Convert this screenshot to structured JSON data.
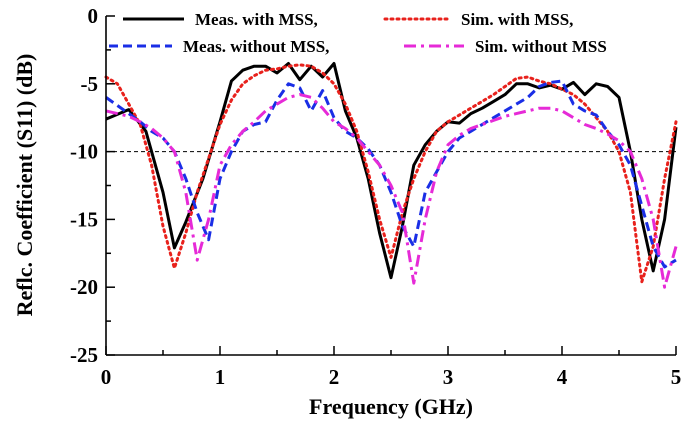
{
  "chart_data": {
    "type": "line",
    "xlabel": "Frequency (GHz)",
    "ylabel": "Reflc. Coefficient (S11) (dB)",
    "xlim": [
      0,
      5
    ],
    "ylim": [
      -25,
      0
    ],
    "x_ticks": [
      "0",
      "1",
      "2",
      "3",
      "4",
      "5"
    ],
    "y_ticks": [
      "0",
      "-5",
      "-10",
      "-15",
      "-20",
      "-25"
    ],
    "reference_line": -10,
    "grid": false,
    "legend_position": "top",
    "series": [
      {
        "name": "Meas. with MSS,",
        "color": "#000000",
        "dash": "solid",
        "x": [
          0,
          0.2,
          0.35,
          0.5,
          0.6,
          0.7,
          0.85,
          1.0,
          1.1,
          1.2,
          1.3,
          1.4,
          1.5,
          1.6,
          1.7,
          1.8,
          1.9,
          2.0,
          2.1,
          2.2,
          2.3,
          2.4,
          2.5,
          2.6,
          2.7,
          2.8,
          2.9,
          3.0,
          3.1,
          3.2,
          3.3,
          3.4,
          3.5,
          3.6,
          3.7,
          3.8,
          3.9,
          4.0,
          4.1,
          4.2,
          4.3,
          4.4,
          4.5,
          4.6,
          4.7,
          4.8,
          4.9,
          5.0
        ],
        "y": [
          -7.6,
          -6.9,
          -8.5,
          -13.0,
          -17.1,
          -15.2,
          -12.0,
          -7.8,
          -4.8,
          -4.0,
          -3.7,
          -3.7,
          -4.2,
          -3.5,
          -4.7,
          -3.7,
          -4.5,
          -3.5,
          -7.0,
          -9.0,
          -12.0,
          -16.0,
          -19.3,
          -15.5,
          -11.0,
          -9.5,
          -8.5,
          -7.8,
          -7.9,
          -7.2,
          -6.8,
          -6.3,
          -5.8,
          -5.0,
          -5.0,
          -5.3,
          -5.1,
          -5.4,
          -4.9,
          -5.8,
          -5.0,
          -5.2,
          -6.0,
          -10.0,
          -15.0,
          -18.8,
          -15.0,
          -8.2
        ]
      },
      {
        "name": "Sim. with MSS,",
        "color": "#e8211c",
        "dash": "dotted",
        "x": [
          0,
          0.1,
          0.2,
          0.3,
          0.4,
          0.5,
          0.6,
          0.7,
          0.8,
          0.9,
          1.0,
          1.1,
          1.2,
          1.3,
          1.4,
          1.5,
          1.6,
          1.7,
          1.8,
          1.9,
          2.0,
          2.1,
          2.2,
          2.3,
          2.4,
          2.5,
          2.6,
          2.7,
          2.8,
          2.9,
          3.0,
          3.1,
          3.2,
          3.3,
          3.4,
          3.5,
          3.6,
          3.7,
          3.8,
          3.9,
          4.0,
          4.1,
          4.2,
          4.3,
          4.4,
          4.5,
          4.6,
          4.7,
          4.8,
          4.9,
          5.0
        ],
        "y": [
          -4.5,
          -5.0,
          -6.5,
          -8.0,
          -11.0,
          -15.5,
          -18.6,
          -16.0,
          -13.0,
          -10.5,
          -8.0,
          -6.2,
          -5.0,
          -4.4,
          -4.0,
          -3.9,
          -3.7,
          -3.6,
          -3.7,
          -4.2,
          -5.0,
          -6.5,
          -8.5,
          -11.5,
          -15.0,
          -17.8,
          -14.5,
          -12.0,
          -10.0,
          -8.5,
          -7.8,
          -7.3,
          -6.8,
          -6.3,
          -5.8,
          -5.2,
          -4.6,
          -4.5,
          -4.8,
          -5.0,
          -5.4,
          -5.8,
          -6.5,
          -7.5,
          -8.5,
          -10.0,
          -13.0,
          -19.6,
          -17.0,
          -12.0,
          -7.8
        ]
      },
      {
        "name": "Meas. without MSS,",
        "color": "#1a2ee6",
        "dash": "dashed",
        "x": [
          0,
          0.1,
          0.2,
          0.3,
          0.4,
          0.5,
          0.6,
          0.7,
          0.8,
          0.9,
          1.0,
          1.1,
          1.2,
          1.3,
          1.4,
          1.5,
          1.6,
          1.7,
          1.8,
          1.9,
          2.0,
          2.1,
          2.2,
          2.3,
          2.4,
          2.5,
          2.6,
          2.7,
          2.8,
          2.9,
          3.0,
          3.1,
          3.2,
          3.3,
          3.4,
          3.5,
          3.6,
          3.7,
          3.8,
          3.9,
          4.0,
          4.1,
          4.2,
          4.3,
          4.4,
          4.5,
          4.6,
          4.7,
          4.8,
          4.9,
          5.0
        ],
        "y": [
          -6.0,
          -6.6,
          -7.2,
          -7.8,
          -8.5,
          -9.0,
          -10.0,
          -12.0,
          -14.5,
          -16.5,
          -12.0,
          -10.0,
          -8.5,
          -8.0,
          -7.8,
          -6.2,
          -5.0,
          -5.3,
          -7.0,
          -5.5,
          -7.5,
          -8.5,
          -9.0,
          -9.8,
          -11.0,
          -13.0,
          -15.5,
          -17.0,
          -13.0,
          -11.5,
          -10.0,
          -9.0,
          -8.5,
          -8.0,
          -7.5,
          -7.0,
          -6.5,
          -6.0,
          -5.2,
          -4.9,
          -4.8,
          -6.5,
          -7.0,
          -7.3,
          -8.5,
          -9.5,
          -11.0,
          -14.0,
          -17.0,
          -18.5,
          -18.0
        ]
      },
      {
        "name": "Sim. without MSS",
        "color": "#e62ad7",
        "dash": "dashdot",
        "x": [
          0,
          0.1,
          0.2,
          0.3,
          0.4,
          0.5,
          0.6,
          0.7,
          0.8,
          0.9,
          1.0,
          1.1,
          1.2,
          1.3,
          1.4,
          1.5,
          1.6,
          1.7,
          1.8,
          1.9,
          2.0,
          2.1,
          2.2,
          2.3,
          2.4,
          2.5,
          2.6,
          2.7,
          2.8,
          2.9,
          3.0,
          3.1,
          3.2,
          3.3,
          3.4,
          3.5,
          3.6,
          3.7,
          3.8,
          3.9,
          4.0,
          4.1,
          4.2,
          4.3,
          4.4,
          4.5,
          4.6,
          4.7,
          4.8,
          4.9,
          5.0
        ],
        "y": [
          -7.0,
          -7.2,
          -7.4,
          -7.8,
          -8.3,
          -9.0,
          -10.0,
          -13.0,
          -18.0,
          -15.0,
          -11.0,
          -9.5,
          -8.5,
          -7.8,
          -7.0,
          -6.5,
          -6.0,
          -5.8,
          -6.0,
          -6.8,
          -7.8,
          -8.3,
          -9.0,
          -10.0,
          -11.0,
          -12.5,
          -14.5,
          -19.7,
          -15.0,
          -11.5,
          -9.5,
          -8.8,
          -8.3,
          -8.0,
          -7.7,
          -7.4,
          -7.2,
          -7.0,
          -6.8,
          -6.8,
          -7.0,
          -7.5,
          -8.0,
          -8.3,
          -8.7,
          -9.2,
          -10.0,
          -12.0,
          -15.0,
          -20.0,
          -17.0
        ]
      }
    ]
  }
}
